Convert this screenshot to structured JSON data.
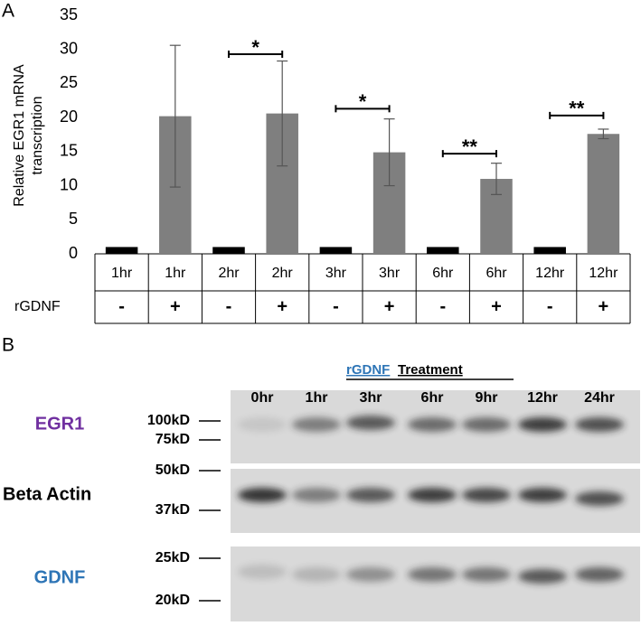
{
  "chart_data": {
    "type": "bar",
    "panel_label": "A",
    "ylabel": [
      "Relative EGR1 mRNA",
      "transcription"
    ],
    "categories": [
      "1hr",
      "1hr",
      "2hr",
      "2hr",
      "3hr",
      "3hr",
      "6hr",
      "6hr",
      "12hr",
      "12hr"
    ],
    "row_label": "rGDNF",
    "row_values": [
      "-",
      "+",
      "-",
      "+",
      "-",
      "+",
      "-",
      "+",
      "-",
      "+"
    ],
    "values": [
      1,
      20.2,
      1,
      20.6,
      1,
      14.9,
      1,
      11.0,
      1,
      17.6
    ],
    "errors": [
      null,
      10.4,
      null,
      7.7,
      null,
      4.9,
      null,
      2.3,
      null,
      0.7
    ],
    "colors": [
      "#000000",
      "#7f7f7f",
      "#000000",
      "#7f7f7f",
      "#000000",
      "#7f7f7f",
      "#000000",
      "#7f7f7f",
      "#000000",
      "#7f7f7f"
    ],
    "ylim": [
      0,
      35
    ],
    "yticks": [
      0,
      5,
      10,
      15,
      20,
      25,
      30,
      35
    ],
    "annotations": [
      {
        "text": "*",
        "between": [
          2,
          3
        ],
        "y": 29.3
      },
      {
        "text": "*",
        "between": [
          4,
          5
        ],
        "y": 21.3
      },
      {
        "text": "**",
        "between": [
          6,
          7
        ],
        "y": 14.7
      },
      {
        "text": "**",
        "between": [
          8,
          9
        ],
        "y": 20.3
      }
    ]
  },
  "panel_b": {
    "label": "B",
    "header_agent": "rGDNF",
    "header_text": "Treatment",
    "lanes": [
      "0hr",
      "1hr",
      "3hr",
      "6hr",
      "9hr",
      "12hr",
      "24hr"
    ],
    "markers": [
      "100kD",
      "75kD",
      "50kD",
      "37kD",
      "25kD",
      "20kD"
    ],
    "proteins": [
      "EGR1",
      "Beta Actin",
      "GDNF"
    ]
  }
}
